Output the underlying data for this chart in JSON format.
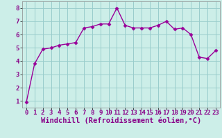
{
  "x": [
    0,
    1,
    2,
    3,
    4,
    5,
    6,
    7,
    8,
    9,
    10,
    11,
    12,
    13,
    14,
    15,
    16,
    17,
    18,
    19,
    20,
    21,
    22,
    23
  ],
  "y": [
    0.9,
    3.8,
    4.9,
    5.0,
    5.2,
    5.3,
    5.4,
    6.5,
    6.6,
    6.8,
    6.8,
    8.0,
    6.7,
    6.5,
    6.5,
    6.5,
    6.7,
    7.0,
    6.4,
    6.5,
    6.0,
    4.3,
    4.2,
    4.8
  ],
  "line_color": "#990099",
  "marker": "D",
  "marker_size": 2.5,
  "bg_color": "#cceee8",
  "grid_color": "#99cccc",
  "xlabel": "Windchill (Refroidissement éolien,°C)",
  "xlabel_color": "#880088",
  "xlim": [
    -0.5,
    23.5
  ],
  "ylim": [
    0.5,
    8.5
  ],
  "yticks": [
    1,
    2,
    3,
    4,
    5,
    6,
    7,
    8
  ],
  "xticks": [
    0,
    1,
    2,
    3,
    4,
    5,
    6,
    7,
    8,
    9,
    10,
    11,
    12,
    13,
    14,
    15,
    16,
    17,
    18,
    19,
    20,
    21,
    22,
    23
  ],
  "tick_label_color": "#880088",
  "tick_label_fontsize": 6.5,
  "xlabel_fontsize": 7.5,
  "line_width": 1.0
}
